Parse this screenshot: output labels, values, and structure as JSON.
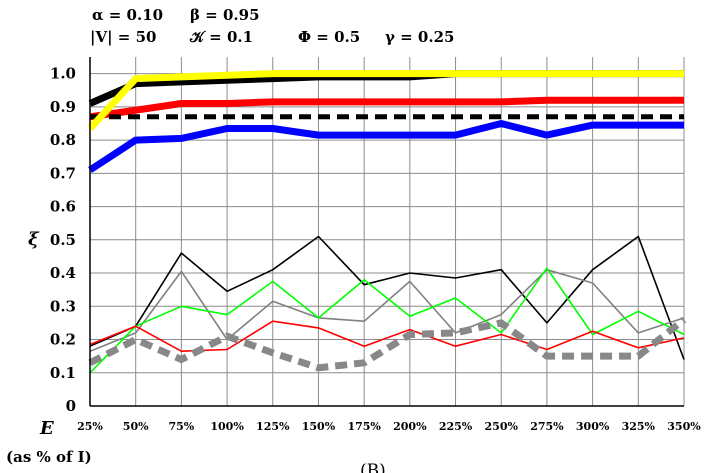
{
  "params_line1": [
    "α = 0.10",
    "β = 0.95"
  ],
  "params_line2": [
    "|V| = 50",
    "𝒦 = 0.1",
    "Φ = 0.5",
    "γ = 0.25"
  ],
  "caption": "(B)",
  "chart_data": {
    "type": "line",
    "xlabel": "E",
    "xlabel_sub": "(as % of I)",
    "ylabel": "ξ",
    "categories": [
      "25%",
      "50%",
      "75%",
      "100%",
      "125%",
      "150%",
      "175%",
      "200%",
      "225%",
      "250%",
      "275%",
      "300%",
      "325%",
      "350%"
    ],
    "yticks": [
      "0",
      "0.1",
      "0.2",
      "0.3",
      "0.4",
      "0.5",
      "0.6",
      "0.7",
      "0.8",
      "0.9",
      "1.0"
    ],
    "ylim": [
      0,
      1.05
    ],
    "grid": true,
    "series": [
      {
        "color": "#000000",
        "width": 7,
        "dash": "",
        "values": [
          0.91,
          0.97,
          0.975,
          0.98,
          0.985,
          0.99,
          0.99,
          0.99,
          1.0,
          1.0,
          1.0,
          1.0,
          1.0,
          1.0
        ]
      },
      {
        "color": "#ff0000",
        "width": 7,
        "dash": "",
        "values": [
          0.87,
          0.89,
          0.91,
          0.91,
          0.915,
          0.915,
          0.915,
          0.915,
          0.915,
          0.915,
          0.92,
          0.92,
          0.92,
          0.92
        ]
      },
      {
        "color": "#000000",
        "width": 5,
        "dash": "12,7",
        "values": [
          0.87,
          0.87,
          0.87,
          0.87,
          0.87,
          0.87,
          0.87,
          0.87,
          0.87,
          0.87,
          0.87,
          0.87,
          0.87,
          0.87
        ]
      },
      {
        "color": "#0000ff",
        "width": 7,
        "dash": "",
        "values": [
          0.71,
          0.8,
          0.805,
          0.835,
          0.835,
          0.815,
          0.815,
          0.815,
          0.815,
          0.85,
          0.815,
          0.845,
          0.845,
          0.845
        ]
      },
      {
        "color": "#ffff00",
        "width": 7,
        "dash": "",
        "values": [
          0.835,
          0.985,
          0.99,
          0.995,
          1.0,
          1.0,
          1.0,
          1.0,
          1.0,
          1.0,
          1.0,
          1.0,
          1.0,
          1.0
        ]
      },
      {
        "color": "#000000",
        "width": 1.6,
        "dash": "",
        "values": [
          0.18,
          0.24,
          0.46,
          0.345,
          0.41,
          0.51,
          0.365,
          0.4,
          0.385,
          0.41,
          0.25,
          0.41,
          0.51,
          0.14
        ]
      },
      {
        "color": "#808080",
        "width": 1.6,
        "dash": "",
        "values": [
          0.165,
          0.22,
          0.405,
          0.2,
          0.315,
          0.265,
          0.255,
          0.375,
          0.22,
          0.275,
          0.41,
          0.37,
          0.22,
          0.265
        ]
      },
      {
        "color": "#00ff00",
        "width": 1.6,
        "dash": "",
        "values": [
          0.1,
          0.24,
          0.3,
          0.275,
          0.375,
          0.265,
          0.38,
          0.27,
          0.325,
          0.22,
          0.415,
          0.215,
          0.285,
          0.215
        ]
      },
      {
        "color": "#ff0000",
        "width": 1.6,
        "dash": "",
        "values": [
          0.185,
          0.24,
          0.165,
          0.17,
          0.255,
          0.235,
          0.18,
          0.23,
          0.18,
          0.215,
          0.17,
          0.225,
          0.175,
          0.205
        ]
      },
      {
        "color": "#888888",
        "width": 7,
        "dash": "12,7",
        "values": [
          0.13,
          0.2,
          0.14,
          0.21,
          0.16,
          0.115,
          0.13,
          0.215,
          0.22,
          0.25,
          0.15,
          0.15,
          0.15,
          0.26
        ]
      }
    ]
  }
}
